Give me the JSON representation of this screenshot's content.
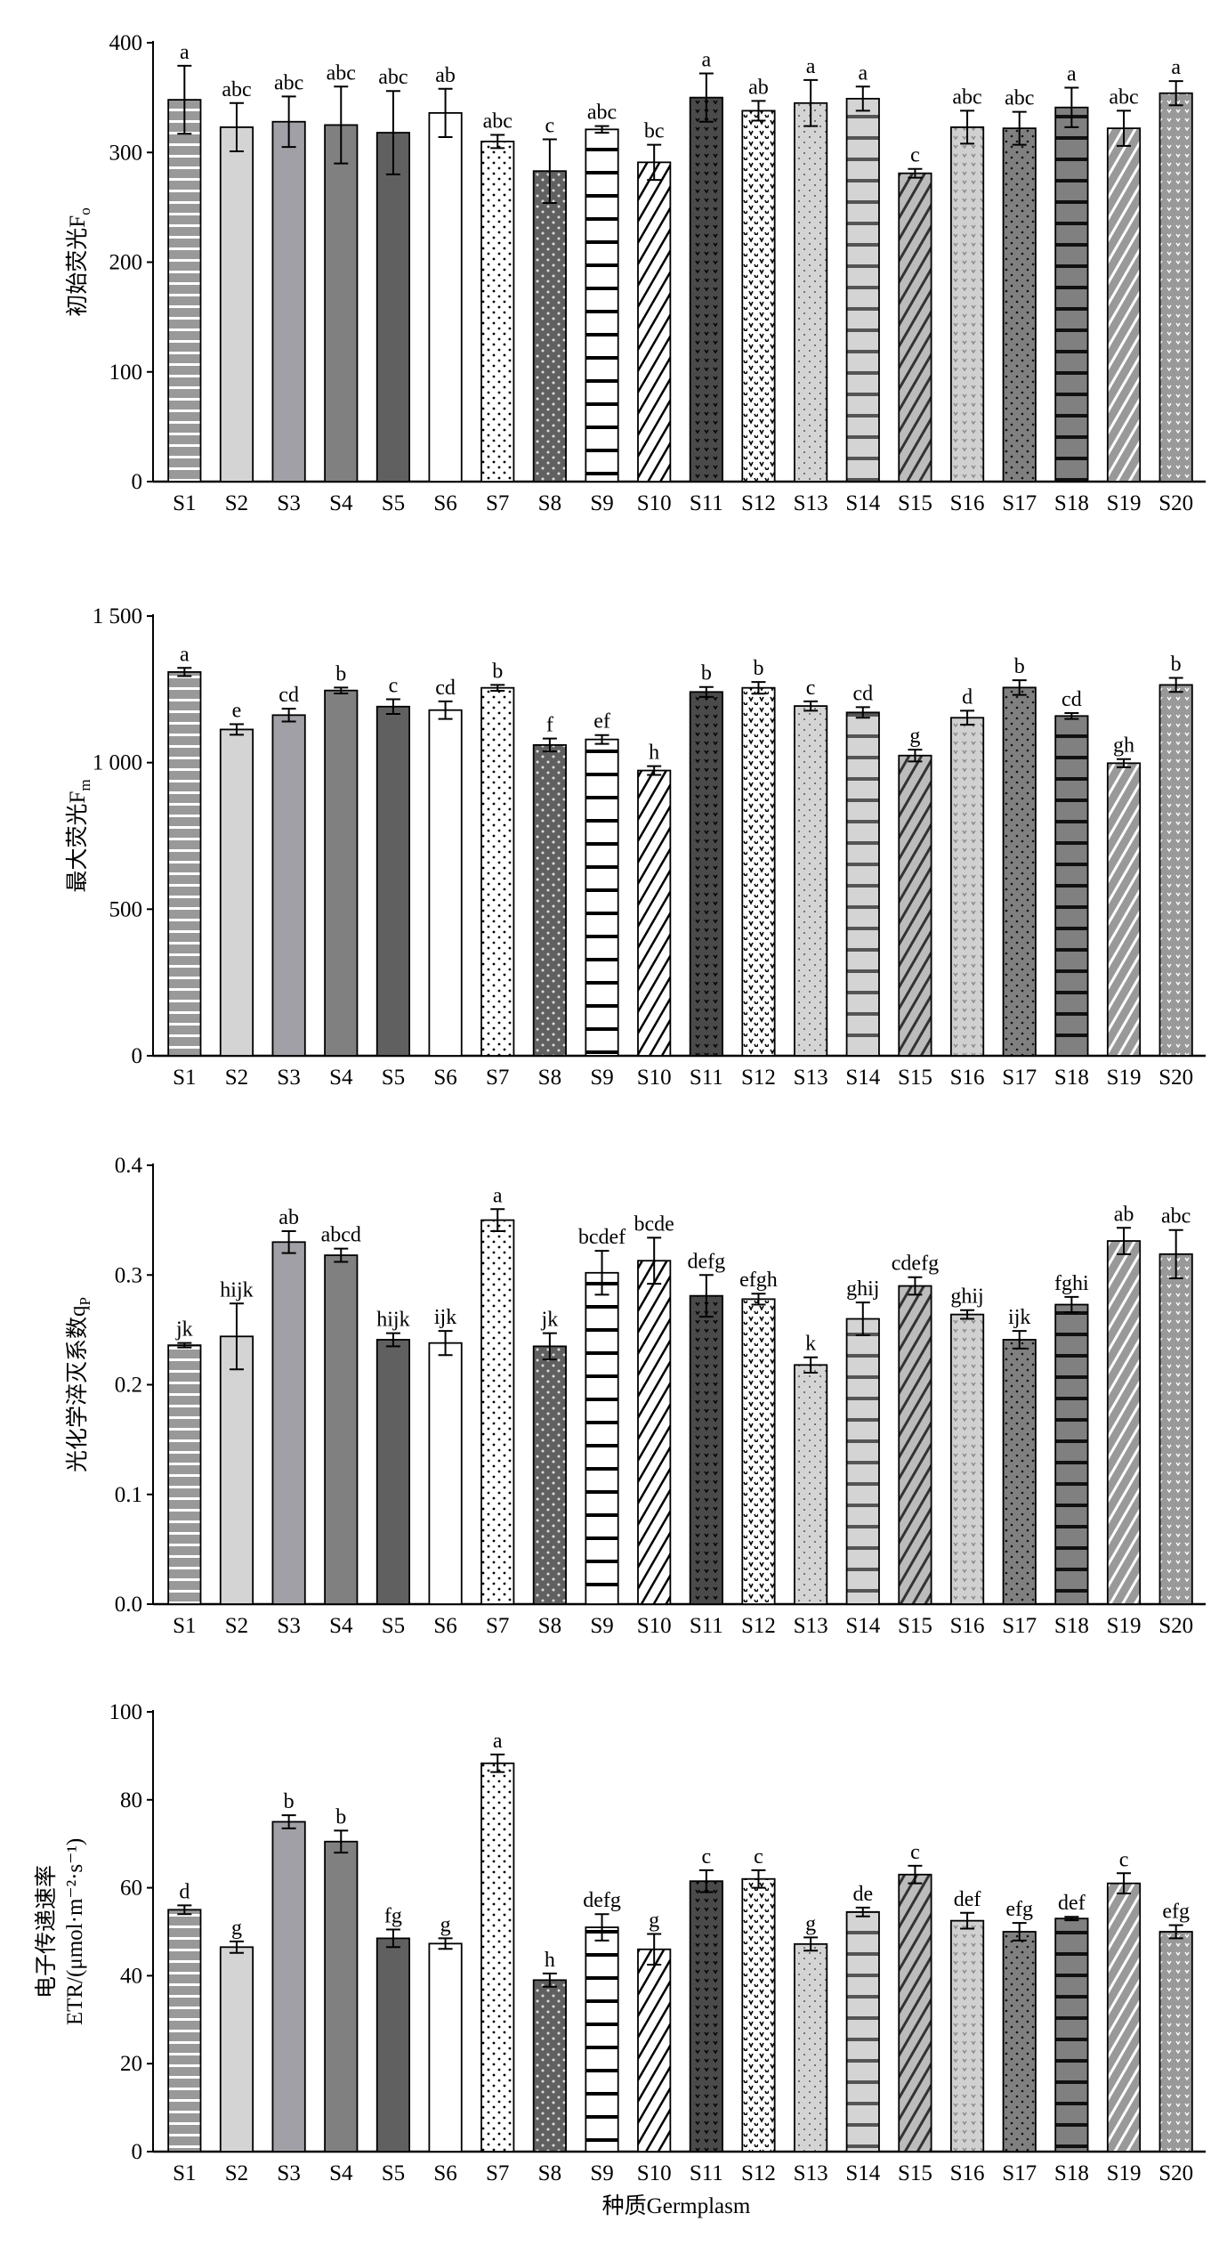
{
  "chart_data": [
    {
      "type": "bar",
      "title": "",
      "ylabel": "初始荧光F",
      "ylabel_sub": "o",
      "xlabel": "",
      "ylim": [
        0,
        400
      ],
      "yticks": [
        0,
        100,
        200,
        300,
        400
      ],
      "ytick_labels": [
        "0",
        "100",
        "200",
        "300",
        "400"
      ],
      "categories": [
        "S1",
        "S2",
        "S3",
        "S4",
        "S5",
        "S6",
        "S7",
        "S8",
        "S9",
        "S10",
        "S11",
        "S12",
        "S13",
        "S14",
        "S15",
        "S16",
        "S17",
        "S18",
        "S19",
        "S20"
      ],
      "values": [
        348,
        323,
        328,
        325,
        318,
        336,
        310,
        283,
        321,
        291,
        350,
        338,
        345,
        349,
        281,
        323,
        322,
        341,
        322,
        354
      ],
      "errors": [
        31,
        22,
        23,
        35,
        38,
        22,
        6,
        29,
        3,
        16,
        22,
        9,
        21,
        11,
        4,
        15,
        15,
        18,
        16,
        11
      ],
      "letters": [
        "a",
        "abc",
        "abc",
        "abc",
        "abc",
        "ab",
        "abc",
        "c",
        "abc",
        "bc",
        "a",
        "ab",
        "a",
        "a",
        "c",
        "abc",
        "abc",
        "a",
        "abc",
        "a"
      ]
    },
    {
      "type": "bar",
      "title": "",
      "ylabel": "最大荧光F",
      "ylabel_sub": "m",
      "xlabel": "",
      "ylim": [
        0,
        1500
      ],
      "yticks": [
        0,
        500,
        1000,
        1500
      ],
      "ytick_labels": [
        "0",
        "500",
        "1 000",
        "1 500"
      ],
      "categories": [
        "S1",
        "S2",
        "S3",
        "S4",
        "S5",
        "S6",
        "S7",
        "S8",
        "S9",
        "S10",
        "S11",
        "S12",
        "S13",
        "S14",
        "S15",
        "S16",
        "S17",
        "S18",
        "S19",
        "S20"
      ],
      "values": [
        1309,
        1113,
        1162,
        1246,
        1191,
        1179,
        1255,
        1060,
        1079,
        973,
        1241,
        1255,
        1193,
        1171,
        1024,
        1153,
        1256,
        1159,
        998,
        1265
      ],
      "errors": [
        14,
        18,
        22,
        10,
        25,
        30,
        10,
        22,
        15,
        15,
        17,
        20,
        16,
        18,
        20,
        24,
        25,
        10,
        14,
        24
      ],
      "letters": [
        "a",
        "e",
        "cd",
        "b",
        "c",
        "cd",
        "b",
        "f",
        "ef",
        "h",
        "b",
        "b",
        "c",
        "cd",
        "g",
        "d",
        "b",
        "cd",
        "gh",
        "b"
      ]
    },
    {
      "type": "bar",
      "title": "",
      "ylabel": "光化学淬灭系数q",
      "ylabel_sub": "P",
      "xlabel": "",
      "ylim": [
        0,
        0.4
      ],
      "yticks": [
        0,
        0.1,
        0.2,
        0.3,
        0.4
      ],
      "ytick_labels": [
        "0.0",
        "0.1",
        "0.2",
        "0.3",
        "0.4"
      ],
      "categories": [
        "S1",
        "S2",
        "S3",
        "S4",
        "S5",
        "S6",
        "S7",
        "S8",
        "S9",
        "S10",
        "S11",
        "S12",
        "S13",
        "S14",
        "S15",
        "S16",
        "S17",
        "S18",
        "S19",
        "S20"
      ],
      "values": [
        0.236,
        0.244,
        0.33,
        0.318,
        0.241,
        0.238,
        0.35,
        0.235,
        0.302,
        0.313,
        0.281,
        0.278,
        0.218,
        0.26,
        0.29,
        0.264,
        0.241,
        0.273,
        0.331,
        0.319
      ],
      "errors": [
        0.002,
        0.03,
        0.01,
        0.006,
        0.006,
        0.011,
        0.01,
        0.012,
        0.02,
        0.021,
        0.019,
        0.005,
        0.007,
        0.015,
        0.008,
        0.004,
        0.008,
        0.007,
        0.012,
        0.022
      ],
      "letters": [
        "jk",
        "hijk",
        "ab",
        "abcd",
        "hijk",
        "ijk",
        "a",
        "jk",
        "bcdef",
        "bcde",
        "defg",
        "efgh",
        "k",
        "ghij",
        "cdefg",
        "ghij",
        "ijk",
        "fghi",
        "ab",
        "abc"
      ]
    },
    {
      "type": "bar",
      "title": "",
      "ylabel": "电子传递速率",
      "ylabel2": "ETR/(μmol·m⁻²·s⁻¹)",
      "xlabel": "种质Germplasm",
      "ylim": [
        0,
        100
      ],
      "yticks": [
        0,
        20,
        40,
        60,
        80,
        100
      ],
      "ytick_labels": [
        "0",
        "20",
        "40",
        "60",
        "80",
        "100"
      ],
      "categories": [
        "S1",
        "S2",
        "S3",
        "S4",
        "S5",
        "S6",
        "S7",
        "S8",
        "S9",
        "S10",
        "S11",
        "S12",
        "S13",
        "S14",
        "S15",
        "S16",
        "S17",
        "S18",
        "S19",
        "S20"
      ],
      "values": [
        55,
        46.5,
        75,
        70.5,
        48.5,
        47.3,
        88.3,
        39,
        51,
        46,
        61.5,
        62,
        47.2,
        54.5,
        63,
        52.5,
        50,
        53,
        61,
        50
      ],
      "errors": [
        1,
        1.3,
        1.5,
        2.5,
        2,
        1.2,
        2,
        1.5,
        3,
        3.5,
        2.5,
        2,
        1.5,
        1,
        2,
        1.8,
        2,
        0.4,
        2.3,
        1.5
      ],
      "letters": [
        "d",
        "g",
        "b",
        "b",
        "fg",
        "g",
        "a",
        "h",
        "defg",
        "g",
        "c",
        "c",
        "g",
        "de",
        "c",
        "def",
        "efg",
        "def",
        "c",
        "efg"
      ]
    }
  ]
}
